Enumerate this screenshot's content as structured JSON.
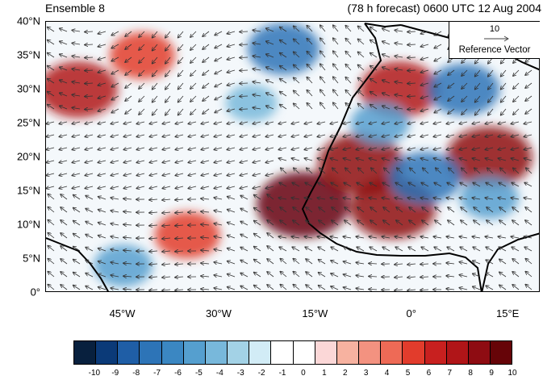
{
  "header": {
    "left_title": "Ensemble 8",
    "right_title": "(78 h forecast) 0600 UTC 12 Aug 2004"
  },
  "map": {
    "lon_range": [
      -57,
      20
    ],
    "lat_range": [
      0,
      40
    ],
    "lat_ticks": [
      {
        "value": 40,
        "label": "40°N"
      },
      {
        "value": 35,
        "label": "35°N"
      },
      {
        "value": 30,
        "label": "30°N"
      },
      {
        "value": 25,
        "label": "25°N"
      },
      {
        "value": 20,
        "label": "20°N"
      },
      {
        "value": 15,
        "label": "15°N"
      },
      {
        "value": 10,
        "label": "10°N"
      },
      {
        "value": 5,
        "label": "5°N"
      },
      {
        "value": 0,
        "label": "0°"
      }
    ],
    "lon_ticks": [
      {
        "value": -45,
        "label": "45°W"
      },
      {
        "value": -30,
        "label": "30°W"
      },
      {
        "value": -15,
        "label": "15°W"
      },
      {
        "value": 0,
        "label": "0°"
      },
      {
        "value": 15,
        "label": "15°E"
      }
    ],
    "reference_vector": {
      "magnitude": "10",
      "label": "Reference Vector"
    },
    "anomaly_features": [
      {
        "lon": -52,
        "lat": 30,
        "value": 7
      },
      {
        "lon": -42,
        "lat": 35,
        "value": 5
      },
      {
        "lon": -35,
        "lat": 8.5,
        "value": 5
      },
      {
        "lon": -45,
        "lat": 4,
        "value": -4
      },
      {
        "lon": -20,
        "lat": 36,
        "value": -6
      },
      {
        "lon": -17,
        "lat": 13,
        "value": 9
      },
      {
        "lon": -8,
        "lat": 19,
        "value": 8
      },
      {
        "lon": -3,
        "lat": 12.5,
        "value": 8
      },
      {
        "lon": -2,
        "lat": 30,
        "value": 7
      },
      {
        "lon": 12,
        "lat": 20,
        "value": 8
      },
      {
        "lon": 2,
        "lat": 17,
        "value": -6
      },
      {
        "lon": 8,
        "lat": 30,
        "value": -6
      },
      {
        "lon": 12,
        "lat": 14,
        "value": -4
      },
      {
        "lon": -25,
        "lat": 28,
        "value": -3
      },
      {
        "lon": -5,
        "lat": 25,
        "value": -4
      }
    ]
  },
  "colorbar": {
    "colors": [
      "#08203e",
      "#0b3a78",
      "#1f5ea6",
      "#2d74b7",
      "#3b87c2",
      "#559fcf",
      "#78b8db",
      "#a3d2e6",
      "#d2ecf6",
      "#ffffff",
      "#ffffff",
      "#fbd7d7",
      "#f7b2a0",
      "#f39280",
      "#ee6a56",
      "#e23c2c",
      "#c8201f",
      "#b01518",
      "#8e0c12",
      "#660408"
    ],
    "labels": [
      "-10",
      "-9",
      "-8",
      "-7",
      "-6",
      "-5",
      "-4",
      "-3",
      "-2",
      "-1",
      "0",
      "1",
      "2",
      "3",
      "4",
      "5",
      "6",
      "7",
      "8",
      "9",
      "10"
    ]
  }
}
